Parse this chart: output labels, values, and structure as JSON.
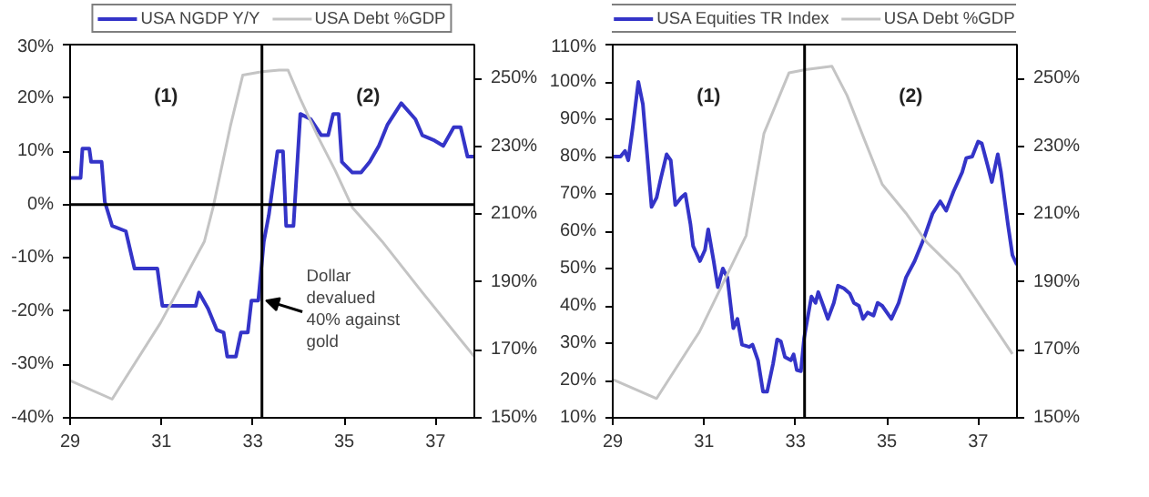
{
  "chart_data": [
    {
      "type": "line",
      "xlim": [
        29,
        37.85
      ],
      "xticks": [
        29,
        31,
        33,
        35,
        37
      ],
      "ylim": [
        -40,
        30
      ],
      "yticks": [
        {
          "value": -40,
          "label": "-40%"
        },
        {
          "value": -30,
          "label": "-30%"
        },
        {
          "value": -20,
          "label": "-20%"
        },
        {
          "value": -10,
          "label": "-10%"
        },
        {
          "value": 0,
          "label": "0%"
        },
        {
          "value": 10,
          "label": "10%"
        },
        {
          "value": 20,
          "label": "20%"
        },
        {
          "value": 30,
          "label": "30%"
        }
      ],
      "y2lim": [
        150,
        260
      ],
      "y2ticks": [
        {
          "value": 150,
          "label": "150%"
        },
        {
          "value": 170,
          "label": "170%"
        },
        {
          "value": 190,
          "label": "190%"
        },
        {
          "value": 210,
          "label": "210%"
        },
        {
          "value": 230,
          "label": "230%"
        },
        {
          "value": 250,
          "label": "250%"
        }
      ],
      "legend": "top",
      "grid": false,
      "series": [
        {
          "name": "USA NGDP Y/Y",
          "color": "#3434c8",
          "x": [
            29.0,
            29.23,
            29.27,
            29.42,
            29.46,
            29.69,
            29.76,
            29.92,
            30.22,
            30.41,
            30.68,
            30.91,
            31.02,
            31.37,
            31.75,
            31.82,
            32.02,
            32.21,
            32.36,
            32.44,
            32.63,
            32.74,
            32.89,
            32.97,
            33.12,
            33.24,
            33.35,
            33.54,
            33.66,
            33.73,
            33.89,
            34.04,
            34.27,
            34.5,
            34.65,
            34.76,
            34.88,
            34.95,
            35.18,
            35.37,
            35.56,
            35.76,
            35.95,
            36.25,
            36.56,
            36.71,
            36.98,
            37.17,
            37.4,
            37.55,
            37.7,
            37.85
          ],
          "values": [
            5,
            5,
            10.5,
            10.5,
            8,
            8,
            0.5,
            -4,
            -5,
            -12,
            -12,
            -12,
            -19,
            -19,
            -19,
            -16.5,
            -19.5,
            -23.5,
            -24,
            -28.5,
            -28.5,
            -24,
            -24,
            -18,
            -18,
            -7,
            -2,
            10,
            10,
            -4,
            -4,
            17,
            16,
            13,
            13,
            17,
            17,
            8,
            6,
            6,
            8,
            11,
            15,
            19,
            16,
            13,
            12,
            11,
            14.5,
            14.5,
            9,
            9
          ]
        },
        {
          "name": "USA Debt %GDP",
          "color": "#c4c4c4",
          "axis": "y2",
          "x": [
            29.0,
            29.92,
            30.98,
            31.94,
            32.13,
            32.51,
            32.78,
            33.2,
            33.58,
            33.77,
            34.04,
            34.42,
            34.8,
            35.18,
            35.83,
            36.71,
            37.85
          ],
          "values": [
            161,
            155.5,
            178,
            202,
            212,
            236,
            251,
            252,
            252.5,
            252.5,
            244,
            233,
            223,
            212,
            202,
            187,
            168
          ]
        }
      ],
      "ref_lines": [
        {
          "axis": "x",
          "value": 33.2,
          "color": "#000000"
        },
        {
          "axis": "y",
          "value": 0,
          "color": "#000000"
        }
      ],
      "annotations": [
        "(1)",
        "(2)",
        {
          "text": "Dollar\ndevalued\n40% against\ngold",
          "x": 33.2,
          "y": -18
        }
      ]
    },
    {
      "type": "line",
      "xlim": [
        29,
        37.85
      ],
      "xticks": [
        29,
        31,
        33,
        35,
        37
      ],
      "ylim": [
        10,
        110
      ],
      "yticks": [
        {
          "value": 10,
          "label": "10%"
        },
        {
          "value": 20,
          "label": "20%"
        },
        {
          "value": 30,
          "label": "30%"
        },
        {
          "value": 40,
          "label": "40%"
        },
        {
          "value": 50,
          "label": "50%"
        },
        {
          "value": 60,
          "label": "60%"
        },
        {
          "value": 70,
          "label": "70%"
        },
        {
          "value": 80,
          "label": "80%"
        },
        {
          "value": 90,
          "label": "90%"
        },
        {
          "value": 100,
          "label": "100%"
        },
        {
          "value": 110,
          "label": "110%"
        }
      ],
      "y2lim": [
        150,
        260
      ],
      "y2ticks": [
        {
          "value": 150,
          "label": "150%"
        },
        {
          "value": 170,
          "label": "170%"
        },
        {
          "value": 190,
          "label": "190%"
        },
        {
          "value": 210,
          "label": "210%"
        },
        {
          "value": 230,
          "label": "230%"
        },
        {
          "value": 250,
          "label": "250%"
        }
      ],
      "legend": "top",
      "grid": false,
      "series": [
        {
          "name": "USA Equities TR Index",
          "color": "#3434c8",
          "x": [
            29.0,
            29.17,
            29.27,
            29.34,
            29.44,
            29.56,
            29.66,
            29.75,
            29.85,
            29.96,
            30.05,
            30.18,
            30.27,
            30.37,
            30.5,
            30.59,
            30.7,
            30.76,
            30.91,
            31.02,
            31.09,
            31.21,
            31.3,
            31.41,
            31.51,
            31.64,
            31.73,
            31.83,
            31.99,
            32.06,
            32.18,
            32.29,
            32.38,
            32.51,
            32.6,
            32.68,
            32.77,
            32.9,
            32.96,
            33.03,
            33.12,
            33.19,
            33.35,
            33.44,
            33.5,
            33.61,
            33.71,
            33.84,
            33.93,
            34.06,
            34.19,
            34.28,
            34.39,
            34.48,
            34.58,
            34.71,
            34.8,
            34.9,
            35.1,
            35.26,
            35.42,
            35.61,
            35.81,
            36.0,
            36.17,
            36.3,
            36.46,
            36.65,
            36.74,
            36.87,
            37.0,
            37.08,
            37.21,
            37.3,
            37.43,
            37.5,
            37.65,
            37.75,
            37.85
          ],
          "values": [
            80,
            80,
            81.5,
            79,
            88,
            100,
            94,
            81,
            66.5,
            69,
            74,
            80.6,
            79,
            67,
            69,
            70,
            62,
            56,
            52,
            55,
            60.5,
            52,
            45,
            50,
            47.6,
            34,
            36.5,
            29.6,
            29,
            29.6,
            25.4,
            17,
            17,
            24.5,
            31,
            30.5,
            26.3,
            25.4,
            27,
            22.8,
            22.5,
            31.4,
            42.5,
            40.8,
            43.7,
            40,
            36.5,
            40.8,
            45.4,
            44.7,
            43.3,
            40.8,
            40,
            36.5,
            38.2,
            37.4,
            40.8,
            40,
            36.5,
            40.8,
            47.6,
            52,
            58,
            64.7,
            68,
            65.5,
            70.6,
            75.8,
            79.6,
            80,
            84,
            83.5,
            77.5,
            73.2,
            80.6,
            75.8,
            62,
            53.6,
            51
          ]
        },
        {
          "name": "USA Debt %GDP",
          "color": "#c4c4c4",
          "axis": "y2",
          "x": [
            29.0,
            29.96,
            30.9,
            31.92,
            32.31,
            32.86,
            33.22,
            33.8,
            34.13,
            34.51,
            34.9,
            35.42,
            35.87,
            36.58,
            37.75
          ],
          "values": [
            161.3,
            155.7,
            175.4,
            203.7,
            233.8,
            251.7,
            252.6,
            253.6,
            245,
            232,
            218.8,
            210.3,
            201.8,
            192.4,
            168.8
          ]
        }
      ],
      "ref_lines": [
        {
          "axis": "x",
          "value": 33.2,
          "color": "#000000"
        }
      ],
      "annotations": [
        "(1)",
        "(2)"
      ]
    }
  ]
}
